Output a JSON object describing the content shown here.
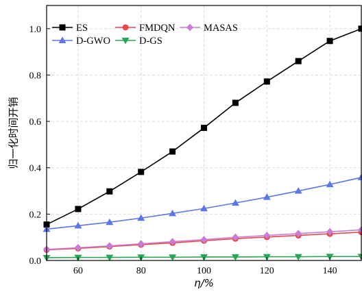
{
  "chart_data": {
    "type": "line",
    "xlabel": "η/%",
    "ylabel": "归一化时间开销",
    "xlim": [
      50,
      150
    ],
    "ylim": [
      0,
      1.1
    ],
    "x_ticks": [
      "60",
      "80",
      "100",
      "120",
      "140"
    ],
    "y_ticks": [
      "0.0",
      "0.2",
      "0.4",
      "0.6",
      "0.8",
      "1.0"
    ],
    "grid": true,
    "legend_position": "top-left",
    "x": [
      50,
      60,
      70,
      80,
      90,
      100,
      110,
      120,
      130,
      140,
      150
    ],
    "series": [
      {
        "name": "ES",
        "color": "#000000",
        "marker": "square",
        "values": [
          0.155,
          0.222,
          0.298,
          0.382,
          0.47,
          0.572,
          0.68,
          0.772,
          0.86,
          0.947,
          1.0
        ]
      },
      {
        "name": "FMDQN",
        "color": "#e8474b",
        "marker": "circle",
        "values": [
          0.046,
          0.052,
          0.06,
          0.068,
          0.076,
          0.085,
          0.094,
          0.101,
          0.108,
          0.115,
          0.122
        ]
      },
      {
        "name": "MASAS",
        "color": "#c77dd6",
        "marker": "diamond",
        "values": [
          0.048,
          0.055,
          0.063,
          0.072,
          0.081,
          0.09,
          0.1,
          0.108,
          0.116,
          0.124,
          0.132
        ]
      },
      {
        "name": "D-GWO",
        "color": "#5b76e6",
        "marker": "triangle-up",
        "values": [
          0.135,
          0.15,
          0.165,
          0.183,
          0.203,
          0.224,
          0.248,
          0.273,
          0.3,
          0.328,
          0.358
        ]
      },
      {
        "name": "D-GS",
        "color": "#2aa556",
        "marker": "triangle-down",
        "values": [
          0.012,
          0.013,
          0.013,
          0.014,
          0.014,
          0.015,
          0.015,
          0.016,
          0.016,
          0.017,
          0.017
        ]
      }
    ]
  }
}
